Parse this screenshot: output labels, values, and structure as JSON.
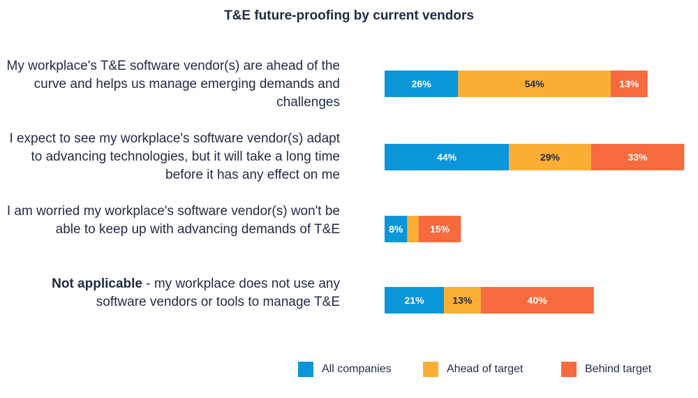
{
  "chart_data": {
    "type": "bar",
    "orientation": "horizontal-stacked",
    "title": "T&E future-proofing by current vendors",
    "categories": [
      {
        "lead": "",
        "text": "My workplace's T&E software vendor(s) are ahead of the curve and helps us manage emerging demands and challenges"
      },
      {
        "lead": "",
        "text": "I expect to see my workplace's software vendor(s) adapt to advancing technologies, but it will take a long time before it has any effect on me"
      },
      {
        "lead": "",
        "text": "I am worried my workplace's software vendor(s) won't be able to keep up with advancing demands of T&E"
      },
      {
        "lead": "Not applicable",
        "text": " - my workplace does not use any software vendors or tools to manage T&E"
      }
    ],
    "series": [
      {
        "name": "All companies",
        "color": "#0a96d9",
        "values": [
          26,
          44,
          8,
          21
        ]
      },
      {
        "name": "Ahead of target",
        "color": "#fbae34",
        "values": [
          54,
          29,
          4,
          13
        ]
      },
      {
        "name": "Behind target",
        "color": "#f66a3d",
        "values": [
          13,
          33,
          15,
          40
        ]
      }
    ],
    "data_labels": [
      [
        "26%",
        "44%",
        "8%",
        "21%"
      ],
      [
        "54%",
        "29%",
        "",
        "13%"
      ],
      [
        "13%",
        "33%",
        "15%",
        "40%"
      ]
    ],
    "legend_position": "bottom-right",
    "grid": false
  }
}
